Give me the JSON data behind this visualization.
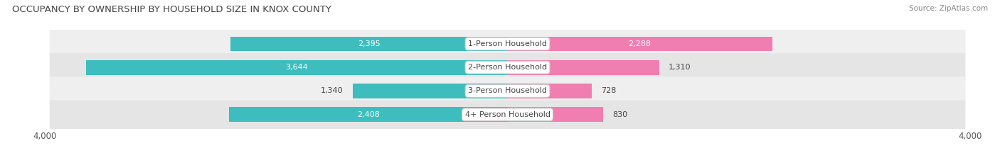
{
  "title": "OCCUPANCY BY OWNERSHIP BY HOUSEHOLD SIZE IN KNOX COUNTY",
  "source": "Source: ZipAtlas.com",
  "categories": [
    "1-Person Household",
    "2-Person Household",
    "3-Person Household",
    "4+ Person Household"
  ],
  "owner_values": [
    2395,
    3644,
    1340,
    2408
  ],
  "renter_values": [
    2288,
    1310,
    728,
    830
  ],
  "x_max": 4000,
  "owner_color": "#3DBDBD",
  "renter_color": "#F07EB0",
  "row_bg_light": "#F2F2F2",
  "row_bg_dark": "#E8E8E8",
  "label_bg_color": "#FFFFFF",
  "title_fontsize": 9.5,
  "source_fontsize": 7.5,
  "axis_label_fontsize": 8.5,
  "bar_label_fontsize": 8,
  "category_fontsize": 8,
  "legend_fontsize": 8.5,
  "axis_tick_label": "4,000",
  "background_color": "#FFFFFF",
  "inside_label_threshold": 0.45
}
